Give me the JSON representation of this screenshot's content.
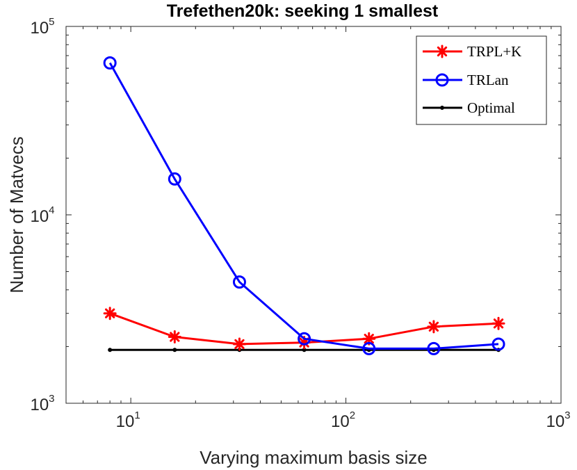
{
  "chart_data": {
    "type": "line",
    "title": "Trefethen20k: seeking 1 smallest",
    "xlabel": "Varying maximum basis size",
    "ylabel": "Number of Matvecs",
    "xscale": "log",
    "yscale": "log",
    "xlim": [
      5,
      1000
    ],
    "ylim": [
      1000,
      100000
    ],
    "x_ticks": [
      {
        "base": "10",
        "exp": "1"
      },
      {
        "base": "10",
        "exp": "2"
      },
      {
        "base": "10",
        "exp": "3"
      }
    ],
    "y_ticks": [
      {
        "base": "10",
        "exp": "3"
      },
      {
        "base": "10",
        "exp": "4"
      },
      {
        "base": "10",
        "exp": "5"
      }
    ],
    "legend_position": "top-right",
    "x": [
      8,
      16,
      32,
      64,
      128,
      256,
      512
    ],
    "series": [
      {
        "name": "TRPL+K",
        "color": "#ff0000",
        "marker": "asterisk",
        "values": [
          3000,
          2250,
          2060,
          2100,
          2200,
          2550,
          2650
        ]
      },
      {
        "name": "TRLan",
        "color": "#0000ff",
        "marker": "circle",
        "values": [
          64000,
          15500,
          4400,
          2200,
          1950,
          1950,
          2060
        ]
      },
      {
        "name": "Optimal",
        "color": "#000000",
        "marker": "dot",
        "values": [
          1920,
          1920,
          1920,
          1920,
          1920,
          1920,
          1920
        ]
      }
    ]
  }
}
